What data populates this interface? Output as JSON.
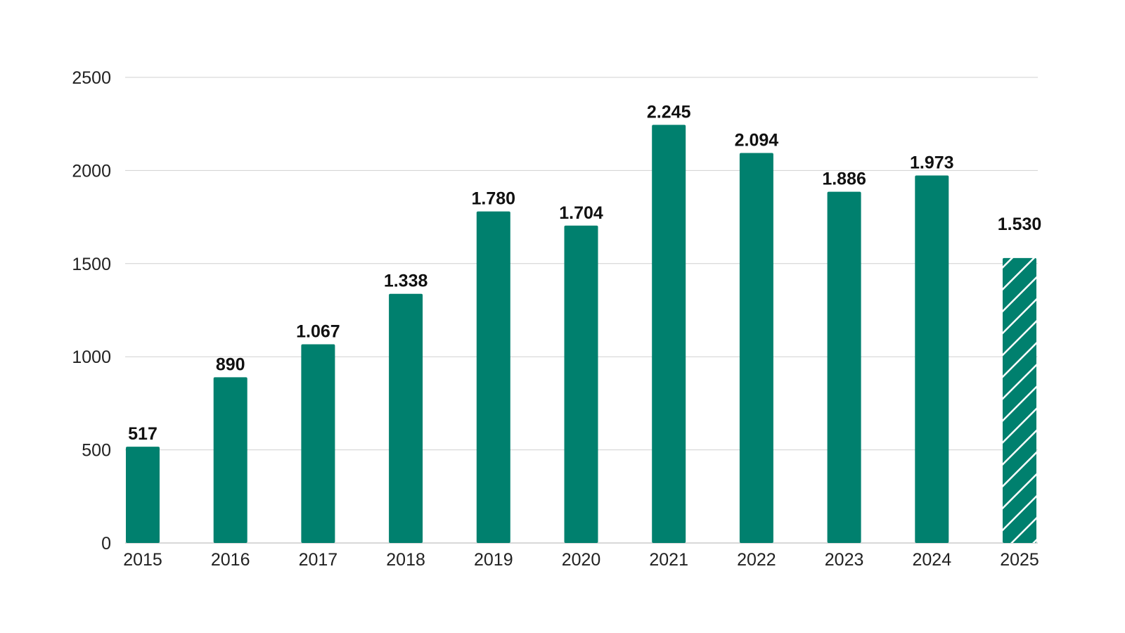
{
  "chart_data": {
    "type": "bar",
    "title": "",
    "xlabel": "",
    "ylabel": "",
    "categories": [
      "2015",
      "2016",
      "2017",
      "2018",
      "2019",
      "2020",
      "2021",
      "2022",
      "2023",
      "2024",
      "2025"
    ],
    "values": [
      517,
      890,
      1067,
      1338,
      1780,
      1704,
      2245,
      2094,
      1886,
      1973,
      1530
    ],
    "value_labels": [
      "517",
      "890",
      "1.067",
      "1.338",
      "1.780",
      "1.704",
      "2.245",
      "2.094",
      "1.886",
      "1.973",
      "1.530"
    ],
    "ylim": [
      0,
      2500
    ],
    "yticks": [
      0,
      500,
      1000,
      1500,
      2000,
      2500
    ],
    "ytick_labels": [
      "0",
      "500",
      "1000",
      "1500",
      "2000",
      "2500"
    ],
    "grid": true,
    "legend": "none",
    "hatched_categories": [
      "2025"
    ],
    "colors": {
      "bar": "#00806e",
      "hatch": "#ffffff",
      "grid": "#d0d0d0"
    }
  }
}
